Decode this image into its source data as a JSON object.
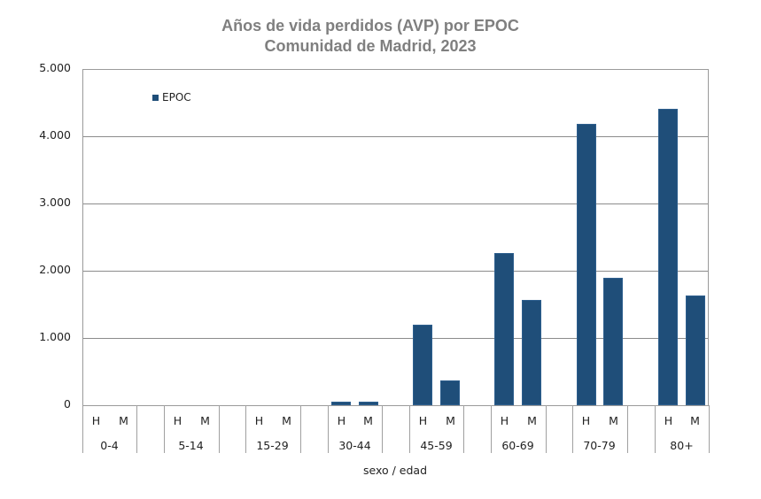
{
  "title_line1": "Años de vida perdidos (AVP) por EPOC",
  "title_line2": "Comunidad de Madrid, 2023",
  "legend": {
    "label": "EPOC",
    "color": "#1f4e79"
  },
  "xlabel": "sexo / edad",
  "yticks": [
    "0",
    "1.000",
    "2.000",
    "3.000",
    "4.000",
    "5.000"
  ],
  "groups": [
    "0-4",
    "5-14",
    "15-29",
    "30-44",
    "45-59",
    "60-69",
    "70-79",
    "80+"
  ],
  "sex_labels": [
    "H",
    "M"
  ],
  "chart_data": {
    "type": "bar",
    "title": "Años de vida perdidos (AVP) por EPOC\nComunidad de Madrid, 2023",
    "xlabel": "sexo / edad",
    "ylabel": "",
    "ylim": [
      0,
      5000
    ],
    "yticks": [
      0,
      1000,
      2000,
      3000,
      4000,
      5000
    ],
    "grid": true,
    "legend_position": "upper-left-inside",
    "categories": [
      "0-4 H",
      "0-4 M",
      "5-14 H",
      "5-14 M",
      "15-29 H",
      "15-29 M",
      "30-44 H",
      "30-44 M",
      "45-59 H",
      "45-59 M",
      "60-69 H",
      "60-69 M",
      "70-79 H",
      "70-79 M",
      "80+ H",
      "80+ M"
    ],
    "series": [
      {
        "name": "EPOC",
        "color": "#1f4e79",
        "values": [
          0,
          0,
          0,
          0,
          0,
          0,
          50,
          57,
          1200,
          370,
          2260,
          1570,
          4190,
          1890,
          4410,
          1630
        ]
      }
    ]
  }
}
